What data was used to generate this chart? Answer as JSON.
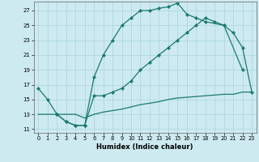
{
  "xlabel": "Humidex (Indice chaleur)",
  "background_color": "#cdeaf0",
  "grid_color": "#a8d4dc",
  "line_color": "#1a7a6e",
  "xlim": [
    -0.5,
    23.5
  ],
  "ylim": [
    10.5,
    28.2
  ],
  "xticks": [
    0,
    1,
    2,
    3,
    4,
    5,
    6,
    7,
    8,
    9,
    10,
    11,
    12,
    13,
    14,
    15,
    16,
    17,
    18,
    19,
    20,
    21,
    22,
    23
  ],
  "yticks": [
    11,
    13,
    15,
    17,
    19,
    21,
    23,
    25,
    27
  ],
  "line1_x": [
    0,
    1,
    2,
    3,
    4,
    5,
    6,
    7,
    8,
    9,
    10,
    11,
    12,
    13,
    14,
    15,
    16,
    17,
    18,
    20,
    22
  ],
  "line1_y": [
    16.5,
    15,
    13,
    12,
    11.5,
    11.5,
    18,
    21,
    23,
    25,
    26,
    27,
    27,
    27.3,
    27.5,
    28,
    26.5,
    26,
    25.5,
    25,
    19
  ],
  "line2_x": [
    2,
    3,
    4,
    5,
    6,
    7,
    8,
    9,
    10,
    11,
    12,
    13,
    14,
    15,
    16,
    17,
    18,
    19,
    20,
    21,
    22,
    23
  ],
  "line2_y": [
    13,
    12,
    11.5,
    11.5,
    15.5,
    15.5,
    16,
    16.5,
    17.5,
    19,
    20,
    21,
    22,
    23,
    24,
    25,
    26,
    25.5,
    25,
    24,
    22,
    16
  ],
  "line3_x": [
    0,
    1,
    2,
    3,
    4,
    5,
    6,
    7,
    8,
    9,
    10,
    11,
    12,
    13,
    14,
    15,
    16,
    17,
    18,
    19,
    20,
    21,
    22,
    23
  ],
  "line3_y": [
    13,
    13,
    13,
    13,
    13,
    12.5,
    13,
    13.3,
    13.5,
    13.7,
    14,
    14.3,
    14.5,
    14.7,
    15,
    15.2,
    15.3,
    15.4,
    15.5,
    15.6,
    15.7,
    15.7,
    16,
    16
  ]
}
